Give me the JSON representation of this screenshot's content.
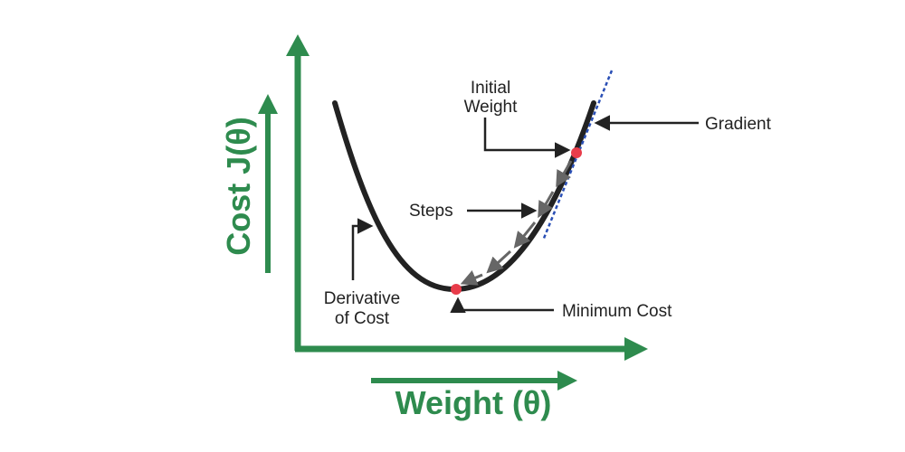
{
  "diagram": {
    "labels": {
      "initial_weight_line1": "Initial",
      "initial_weight_line2": "Weight",
      "gradient": "Gradient",
      "steps": "Steps",
      "derivative_line1": "Derivative",
      "derivative_line2": "of Cost",
      "minimum_cost": "Minimum Cost"
    },
    "axes": {
      "x_title": "Weight (θ)",
      "y_title": "Cost J(θ)"
    },
    "colors": {
      "axis_green": "#2e8b4e",
      "curve": "#222222",
      "point_red": "#e83c4a",
      "tangent_blue": "#2a4fb5",
      "step_arrows": "#666666",
      "pointer_arrows": "#222222"
    }
  }
}
